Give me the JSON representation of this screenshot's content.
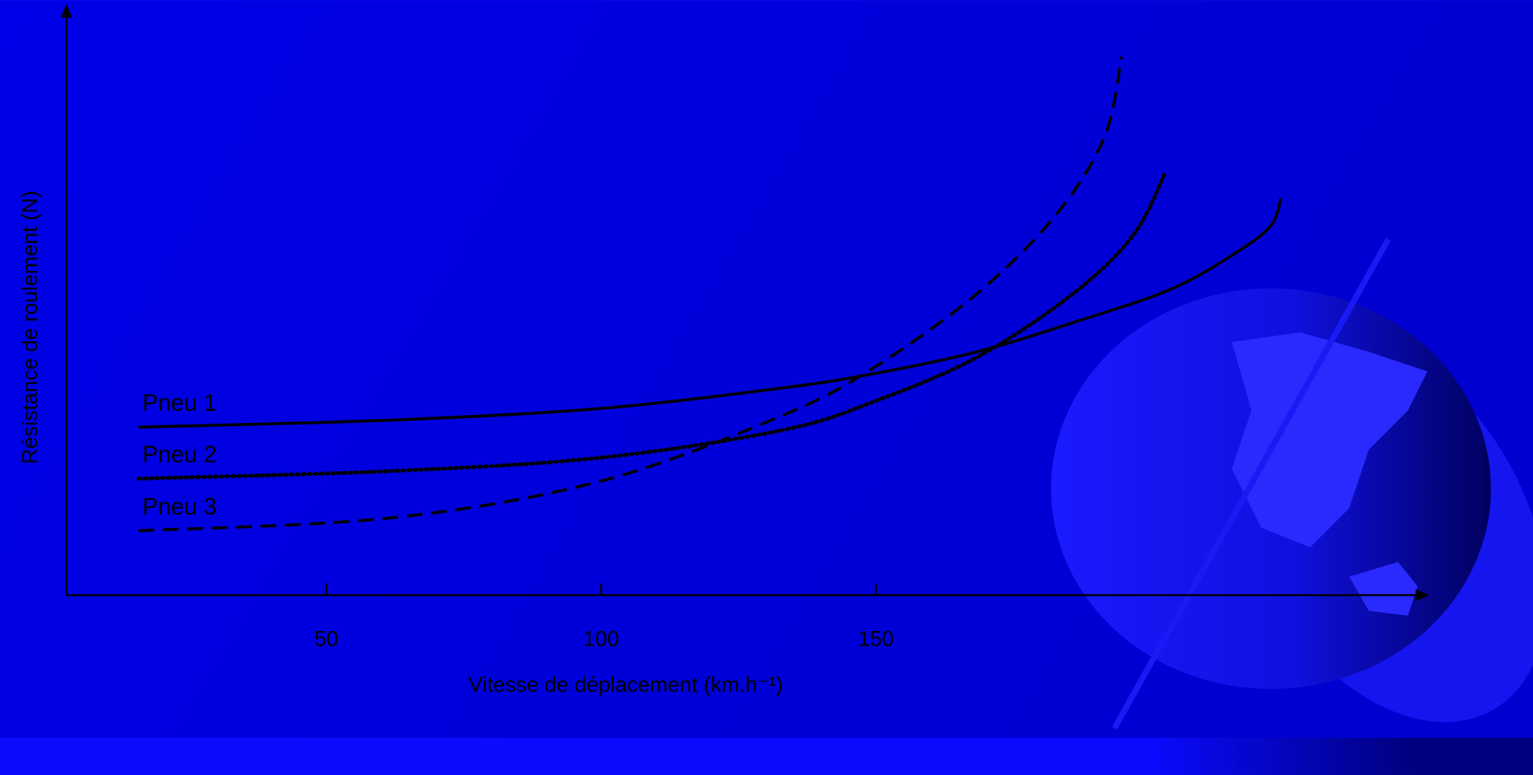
{
  "chart_data": {
    "type": "line",
    "x_label": "Vitesse de déplacement (km.h⁻¹)",
    "y_label": "Résistance de roulement (N)",
    "xlim": [
      2.7,
      250
    ],
    "ylim": [
      0,
      100
    ],
    "xticks": [
      50,
      100,
      150
    ],
    "series": [
      {
        "name": "Pneu 1",
        "color": "#000000",
        "dash": "solid",
        "x": [
          15.8,
          61.7,
          100,
          133,
          150,
          168.5,
          186,
          204,
          216.5,
          222,
          223.7
        ],
        "values": [
          28.7,
          29.9,
          31.9,
          35.4,
          37.9,
          41.6,
          46.6,
          52.4,
          59.1,
          63.3,
          67.8
        ]
      },
      {
        "name": "Pneu 2",
        "color": "#000000",
        "dash": "dotted",
        "x": [
          15.8,
          61.7,
          100,
          133,
          150,
          168.5,
          186,
          196.9,
          202.7
        ],
        "values": [
          19.9,
          21.2,
          23.5,
          28.2,
          33.2,
          40.7,
          51.6,
          61.6,
          72.3
        ]
      },
      {
        "name": "Pneu 3",
        "color": "#000000",
        "dash": "dashed",
        "x": [
          15.8,
          61.7,
          100,
          133,
          150,
          168.5,
          182.7,
          191.6,
          194.7
        ],
        "values": [
          11.0,
          13.2,
          19.5,
          30.7,
          39.1,
          51.6,
          64.9,
          78.3,
          92
        ]
      }
    ]
  }
}
